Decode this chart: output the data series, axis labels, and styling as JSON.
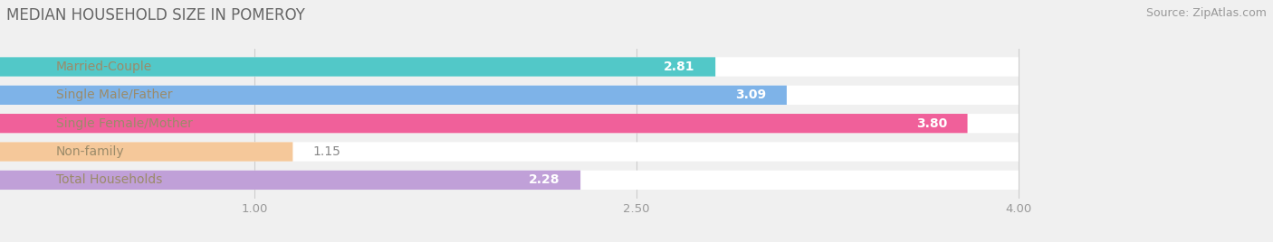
{
  "title": "MEDIAN HOUSEHOLD SIZE IN POMEROY",
  "source": "Source: ZipAtlas.com",
  "categories": [
    "Married-Couple",
    "Single Male/Father",
    "Single Female/Mother",
    "Non-family",
    "Total Households"
  ],
  "values": [
    2.81,
    3.09,
    3.8,
    1.15,
    2.28
  ],
  "bar_colors": [
    "#52C8C8",
    "#7EB3E8",
    "#F0609A",
    "#F5C89A",
    "#C0A0D8"
  ],
  "xlim_start": 0.0,
  "xlim_end": 4.3,
  "data_xstart": 0.0,
  "data_xend": 4.0,
  "xticks": [
    1.0,
    2.5,
    4.0
  ],
  "value_label_color_inside": "#FFFFFF",
  "value_label_color_outside": "#888888",
  "background_color": "#F0F0F0",
  "bar_bg_color": "#FFFFFF",
  "title_fontsize": 12,
  "source_fontsize": 9,
  "label_fontsize": 10,
  "value_fontsize": 10,
  "tick_fontsize": 9.5,
  "bar_height": 0.68,
  "label_text_color": "#9B8B6A"
}
